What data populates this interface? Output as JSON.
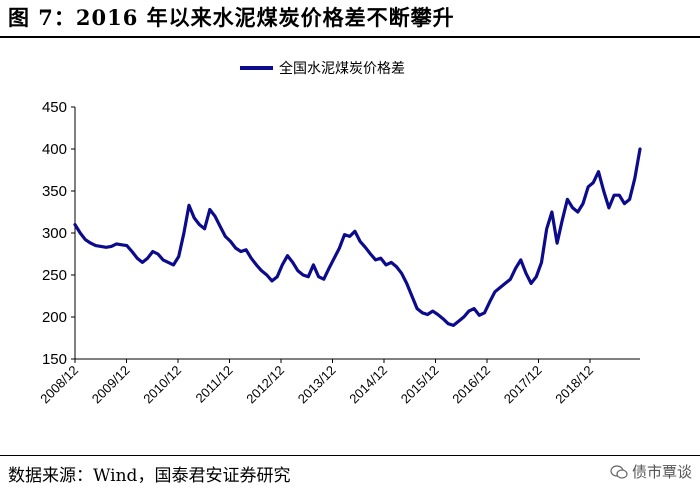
{
  "header": {
    "title": "图 7：2016 年以来水泥煤炭价格差不断攀升"
  },
  "footer": {
    "source": "数据来源：Wind，国泰君安证券研究",
    "watermark": "债市覃谈",
    "watermark_icon": "wechat-icon"
  },
  "colors": {
    "series": "#0b0b8c"
  },
  "chart_data": {
    "type": "line",
    "title": "",
    "xlabel": "",
    "ylabel": "",
    "ylim": [
      150,
      450
    ],
    "yticks": [
      "150",
      "200",
      "250",
      "300",
      "350",
      "400",
      "450"
    ],
    "xticks": [
      "2008/12",
      "2009/12",
      "2010/12",
      "2011/12",
      "2012/12",
      "2013/12",
      "2014/12",
      "2015/12",
      "2016/12",
      "2017/12",
      "2018/12"
    ],
    "x_start": "2008/12",
    "grid": false,
    "legend": "top-center",
    "series": [
      {
        "name": "全国水泥煤炭价格差",
        "values": [
          310,
          300,
          292,
          288,
          285,
          284,
          283,
          284,
          287,
          286,
          285,
          278,
          270,
          265,
          270,
          278,
          275,
          268,
          265,
          262,
          272,
          300,
          333,
          318,
          310,
          305,
          328,
          320,
          308,
          296,
          290,
          282,
          278,
          280,
          270,
          262,
          255,
          250,
          243,
          248,
          262,
          273,
          265,
          255,
          250,
          248,
          262,
          248,
          245,
          258,
          270,
          282,
          298,
          296,
          302,
          290,
          283,
          275,
          268,
          270,
          262,
          265,
          260,
          252,
          240,
          225,
          210,
          205,
          203,
          207,
          203,
          198,
          192,
          190,
          195,
          200,
          207,
          210,
          202,
          205,
          218,
          230,
          235,
          240,
          245,
          258,
          268,
          252,
          240,
          248,
          265,
          305,
          325,
          288,
          315,
          340,
          330,
          325,
          335,
          355,
          360,
          373,
          350,
          330,
          345,
          345,
          335,
          340,
          365,
          400
        ]
      }
    ]
  }
}
